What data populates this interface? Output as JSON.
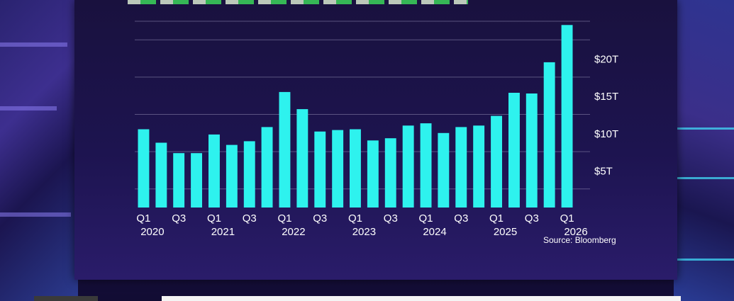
{
  "chart_data": {
    "type": "bar",
    "title": "",
    "xlabel": "",
    "ylabel": "",
    "source": "Source: Bloomberg",
    "ylim": [
      0,
      25
    ],
    "y_ticks": [
      "$5T",
      "$10T",
      "$15T",
      "$20T"
    ],
    "y_tick_values": [
      5,
      10,
      15,
      20
    ],
    "y_axis_position": "right",
    "grid": true,
    "bar_color": "#2ef2ee",
    "categories": [
      "2020 Q1",
      "2020 Q2",
      "2020 Q3",
      "2020 Q4",
      "2021 Q1",
      "2021 Q2",
      "2021 Q3",
      "2021 Q4",
      "2022 Q1",
      "2022 Q2",
      "2022 Q3",
      "2022 Q4",
      "2023 Q1",
      "2023 Q2",
      "2023 Q3",
      "2023 Q4",
      "2024 Q1",
      "2024 Q2",
      "2024 Q3",
      "2024 Q4",
      "2025 Q1",
      "2025 Q2",
      "2025 Q3",
      "2025 Q4",
      "2026 Q1"
    ],
    "values": [
      10.5,
      8.7,
      7.3,
      7.3,
      9.8,
      8.4,
      8.9,
      10.8,
      15.5,
      13.2,
      10.2,
      10.4,
      10.5,
      9.0,
      9.3,
      11.0,
      11.3,
      10.0,
      10.8,
      11.0,
      12.3,
      15.4,
      15.3,
      19.5,
      24.5
    ],
    "x_tick_labels": [
      {
        "index": 0,
        "quarter": "Q1",
        "year": "2020"
      },
      {
        "index": 2,
        "quarter": "Q3",
        "year": ""
      },
      {
        "index": 4,
        "quarter": "Q1",
        "year": "2021"
      },
      {
        "index": 6,
        "quarter": "Q3",
        "year": ""
      },
      {
        "index": 8,
        "quarter": "Q1",
        "year": "2022"
      },
      {
        "index": 10,
        "quarter": "Q3",
        "year": ""
      },
      {
        "index": 12,
        "quarter": "Q1",
        "year": "2023"
      },
      {
        "index": 14,
        "quarter": "Q3",
        "year": ""
      },
      {
        "index": 16,
        "quarter": "Q1",
        "year": "2024"
      },
      {
        "index": 18,
        "quarter": "Q3",
        "year": ""
      },
      {
        "index": 20,
        "quarter": "Q1",
        "year": "2025"
      },
      {
        "index": 22,
        "quarter": "Q3",
        "year": ""
      },
      {
        "index": 24,
        "quarter": "Q1",
        "year": "2026"
      }
    ]
  }
}
